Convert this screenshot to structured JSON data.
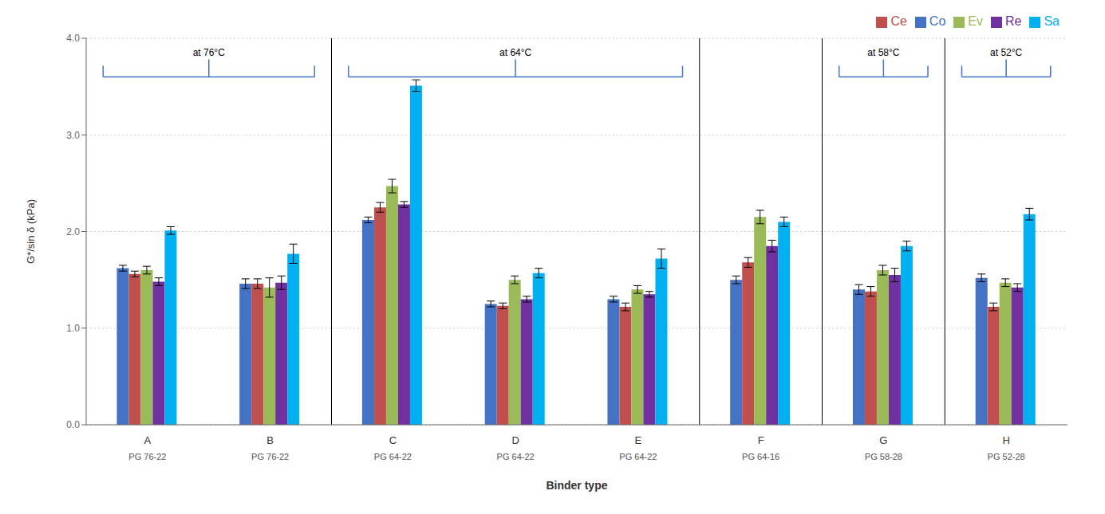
{
  "chart_data": {
    "type": "bar",
    "xlabel": "Binder type",
    "ylabel": "G*/sin δ (kPa)",
    "categories": [
      "A",
      "B",
      "C",
      "D",
      "E",
      "F",
      "G",
      "H"
    ],
    "subcategories": [
      "PG 76-22",
      "PG 76-22",
      "PG 64-22",
      "PG 64-22",
      "PG 64-22",
      "PG 64-16",
      "PG 58-28",
      "PG 52-28"
    ],
    "series": [
      {
        "name": "Co",
        "color": "#4472C4",
        "values": [
          1.62,
          1.46,
          2.12,
          1.25,
          1.3,
          1.5,
          1.4,
          1.52
        ],
        "errors": [
          0.03,
          0.05,
          0.03,
          0.03,
          0.03,
          0.04,
          0.05,
          0.04
        ]
      },
      {
        "name": "Ce",
        "color": "#C0504D",
        "values": [
          1.56,
          1.46,
          2.25,
          1.23,
          1.22,
          1.68,
          1.38,
          1.22
        ],
        "errors": [
          0.03,
          0.05,
          0.05,
          0.03,
          0.04,
          0.05,
          0.05,
          0.04
        ]
      },
      {
        "name": "Ev",
        "color": "#9BBB59",
        "values": [
          1.6,
          1.42,
          2.47,
          1.5,
          1.4,
          2.15,
          1.6,
          1.47
        ],
        "errors": [
          0.04,
          0.1,
          0.07,
          0.04,
          0.04,
          0.07,
          0.05,
          0.04
        ]
      },
      {
        "name": "Re",
        "color": "#7030A0",
        "values": [
          1.48,
          1.47,
          2.28,
          1.3,
          1.35,
          1.85,
          1.55,
          1.42
        ],
        "errors": [
          0.04,
          0.07,
          0.03,
          0.03,
          0.03,
          0.06,
          0.07,
          0.04
        ]
      },
      {
        "name": "Sa",
        "color": "#00B0F0",
        "values": [
          2.01,
          1.77,
          3.51,
          1.57,
          1.72,
          2.1,
          1.85,
          2.18
        ],
        "errors": [
          0.04,
          0.1,
          0.06,
          0.05,
          0.1,
          0.05,
          0.05,
          0.06
        ]
      }
    ],
    "ylim": [
      0.0,
      4.0
    ],
    "yticks": [
      {
        "value": 0,
        "label": "0.0"
      },
      {
        "value": 1,
        "label": "1.0"
      },
      {
        "value": 2,
        "label": "2.0"
      },
      {
        "value": 3,
        "label": "3.0"
      },
      {
        "value": 4,
        "label": "4.0"
      }
    ],
    "grid": true,
    "legend": "upper right",
    "annotations": [
      {
        "text": "at 76°C",
        "categories": [
          "A",
          "B"
        ],
        "color": "#4472C4"
      },
      {
        "text": "at 64°C",
        "categories": [
          "C",
          "E"
        ],
        "color": "#4472C4"
      },
      {
        "text": "at 58°C",
        "categories": [
          "G",
          "G"
        ],
        "color": "#4472C4"
      },
      {
        "text": "at 52°C",
        "categories": [
          "H",
          "H"
        ],
        "color": "#4472C4"
      }
    ],
    "separators": [
      "B",
      "E",
      "F",
      "G"
    ]
  }
}
